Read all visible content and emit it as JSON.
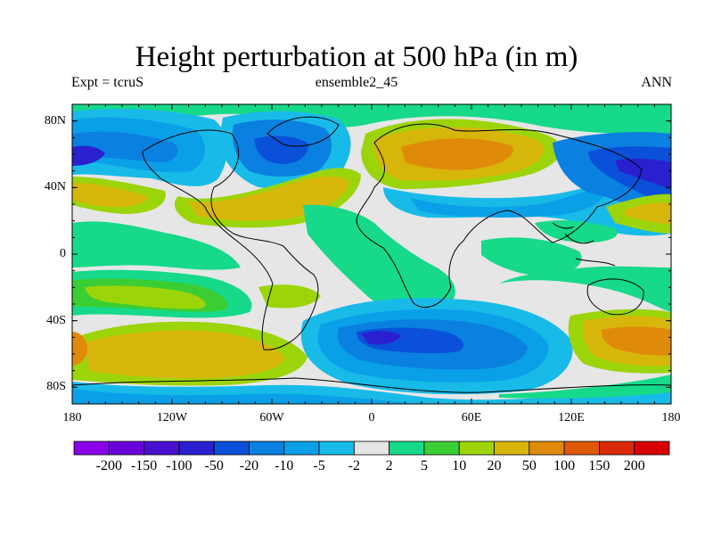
{
  "header": {
    "title": "Height perturbation at 500 hPa (in m)",
    "left": "Expt = tcruS",
    "center": "ensemble2_45",
    "right": "ANN"
  },
  "axes": {
    "lat_labels": [
      "80N",
      "40N",
      "0",
      "40S",
      "80S"
    ],
    "lat_values": [
      80,
      40,
      0,
      -40,
      -80
    ],
    "lon_labels": [
      "180",
      "120W",
      "60W",
      "0",
      "60E",
      "120E",
      "180"
    ],
    "lon_values": [
      -180,
      -120,
      -60,
      0,
      60,
      120,
      180
    ],
    "lat_range": [
      -90,
      90
    ],
    "lon_range": [
      -180,
      180
    ]
  },
  "colorbar": {
    "labels": [
      "-200",
      "-150",
      "-100",
      "-50",
      "-20",
      "-10",
      "-5",
      "-2",
      "2",
      "5",
      "10",
      "20",
      "50",
      "100",
      "150",
      "200"
    ],
    "colors": [
      "#8a00e8",
      "#6a00d8",
      "#4a10d0",
      "#2a20d0",
      "#0a50d8",
      "#0a80e0",
      "#0aa0e8",
      "#18bbe8",
      "#e6e6e6",
      "#16d98a",
      "#3ace34",
      "#9cd40a",
      "#d6b60a",
      "#e08a0a",
      "#e0580a",
      "#d82a0a",
      "#d80000"
    ]
  },
  "map_style": {
    "background": "#e6e6e6",
    "coast_color": "#000000"
  }
}
